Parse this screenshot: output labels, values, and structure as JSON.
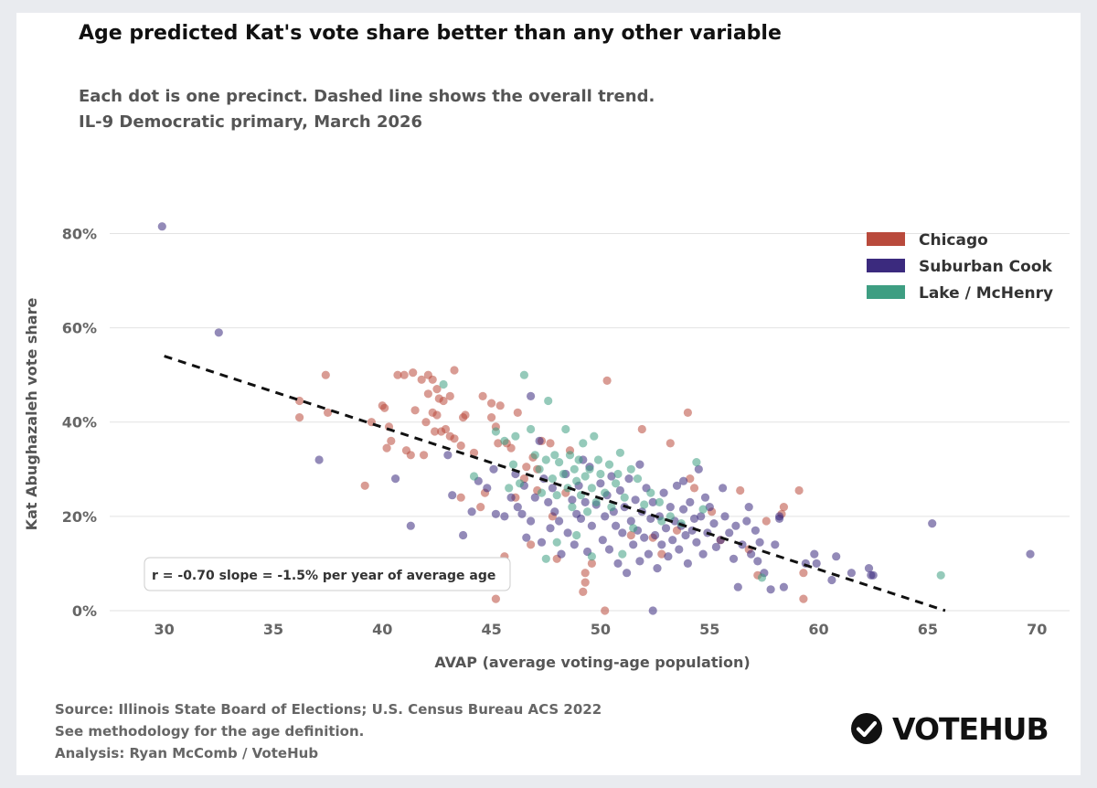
{
  "title": "Age predicted Kat's vote share better than any other variable",
  "subtitle": {
    "line1": "Each dot is one precinct. Dashed line shows the overall trend.",
    "line2": "IL-9 Democratic primary, March 2026"
  },
  "footer": {
    "line1": "Source: Illinois State Board of Elections; U.S. Census Bureau ACS 2022",
    "line2": "See methodology for the age definition.",
    "line3": "Analysis: Ryan McComb / VoteHub"
  },
  "brand": {
    "name": "VOTEHUB",
    "icon": "checkmark-circle-icon"
  },
  "colors": {
    "Chicago": "#b94a3c",
    "Suburban Cook": "#3b2a7e",
    "Lake / McHenry": "#3e9e82",
    "trend": "#111111"
  },
  "chart_data": {
    "type": "scatter",
    "title": "Age predicted Kat's vote share better than any other variable",
    "xlabel": "AVAP (average voting-age population)",
    "ylabel": "Kat Abughazaleh vote share",
    "xlim": [
      27.5,
      71.5
    ],
    "ylim": [
      0,
      83
    ],
    "xticks": [
      30,
      35,
      40,
      45,
      50,
      55,
      60,
      65,
      70
    ],
    "xtick_labels": [
      "30",
      "35",
      "40",
      "45",
      "50",
      "55",
      "60",
      "65",
      "70"
    ],
    "yticks": [
      0,
      20,
      40,
      60,
      80
    ],
    "ytick_labels": [
      "0%",
      "20%",
      "40%",
      "60%",
      "80%"
    ],
    "grid": "horizontal",
    "legend_position": "top-right",
    "trendline": {
      "x0": 30,
      "y0": 54,
      "x1": 65.8,
      "y1": 0,
      "style": "dashed"
    },
    "annotation": "r = -0.70   slope = -1.5% per year of average age",
    "series": [
      {
        "name": "Chicago",
        "points": [
          [
            36.2,
            44.5
          ],
          [
            36.2,
            41
          ],
          [
            37.4,
            50
          ],
          [
            37.5,
            42
          ],
          [
            39.2,
            26.5
          ],
          [
            39.5,
            40
          ],
          [
            40,
            43.5
          ],
          [
            40.1,
            43
          ],
          [
            40.2,
            34.5
          ],
          [
            40.3,
            39
          ],
          [
            40.4,
            36
          ],
          [
            40.7,
            50
          ],
          [
            41,
            50
          ],
          [
            41.1,
            34
          ],
          [
            41.3,
            33
          ],
          [
            41.4,
            50.5
          ],
          [
            41.5,
            42.5
          ],
          [
            41.8,
            49
          ],
          [
            41.9,
            33
          ],
          [
            42,
            40
          ],
          [
            42.1,
            46
          ],
          [
            42.1,
            50
          ],
          [
            42.3,
            42
          ],
          [
            42.3,
            49
          ],
          [
            42.4,
            38
          ],
          [
            42.5,
            41.5
          ],
          [
            42.5,
            47
          ],
          [
            42.6,
            45
          ],
          [
            42.7,
            38
          ],
          [
            42.8,
            44.5
          ],
          [
            42.9,
            38.5
          ],
          [
            43.1,
            45.5
          ],
          [
            43.1,
            37
          ],
          [
            43.3,
            36.5
          ],
          [
            43.3,
            51
          ],
          [
            43.6,
            35
          ],
          [
            43.6,
            24
          ],
          [
            43.7,
            41
          ],
          [
            43.8,
            41.5
          ],
          [
            44.2,
            33.5
          ],
          [
            44.6,
            45.5
          ],
          [
            44.7,
            25
          ],
          [
            45,
            44
          ],
          [
            45,
            41
          ],
          [
            45.2,
            39
          ],
          [
            45.3,
            35.5
          ],
          [
            45.4,
            43.5
          ],
          [
            45.7,
            35.5
          ],
          [
            45.9,
            34.5
          ],
          [
            46.1,
            24
          ],
          [
            46.2,
            42
          ],
          [
            46.5,
            28
          ],
          [
            46.6,
            30.5
          ],
          [
            46.9,
            32.5
          ],
          [
            47.1,
            30
          ],
          [
            47.1,
            25.5
          ],
          [
            47.3,
            36
          ],
          [
            47.7,
            35.5
          ],
          [
            45.2,
            2.5
          ],
          [
            45.6,
            11.5
          ],
          [
            47.8,
            20
          ],
          [
            48,
            11
          ],
          [
            48.6,
            34
          ],
          [
            49.2,
            4
          ],
          [
            49.3,
            8
          ],
          [
            49.3,
            6
          ],
          [
            50.3,
            48.8
          ],
          [
            50.2,
            0
          ],
          [
            51.4,
            16
          ],
          [
            51.9,
            38.5
          ],
          [
            52.4,
            15.5
          ],
          [
            53.2,
            35.5
          ],
          [
            53.5,
            17
          ],
          [
            54,
            42
          ],
          [
            54.1,
            28
          ],
          [
            54.3,
            26
          ],
          [
            55.5,
            15
          ],
          [
            56.4,
            25.5
          ],
          [
            57.2,
            7.5
          ],
          [
            57.6,
            19
          ],
          [
            58.3,
            20.5
          ],
          [
            58.4,
            22
          ],
          [
            59.1,
            25.5
          ],
          [
            59.3,
            8
          ],
          [
            59.3,
            2.5
          ],
          [
            44.5,
            22
          ],
          [
            46.8,
            14
          ],
          [
            48.4,
            25
          ],
          [
            49.6,
            10
          ],
          [
            52.8,
            12
          ],
          [
            55.1,
            21
          ],
          [
            56.8,
            13
          ]
        ]
      },
      {
        "name": "Suburban Cook",
        "points": [
          [
            29.9,
            81.5
          ],
          [
            32.5,
            59
          ],
          [
            37.1,
            32
          ],
          [
            40.6,
            28
          ],
          [
            41.3,
            18
          ],
          [
            43,
            33
          ],
          [
            43.2,
            24.5
          ],
          [
            43.7,
            16
          ],
          [
            44.1,
            21
          ],
          [
            44.4,
            27.5
          ],
          [
            44.8,
            26
          ],
          [
            45.1,
            30
          ],
          [
            45.2,
            20.5
          ],
          [
            45.6,
            20
          ],
          [
            45.9,
            24
          ],
          [
            46.1,
            29
          ],
          [
            46.2,
            22
          ],
          [
            46.4,
            20.5
          ],
          [
            46.5,
            26.5
          ],
          [
            46.6,
            15.5
          ],
          [
            46.8,
            45.5
          ],
          [
            46.8,
            19
          ],
          [
            47,
            24
          ],
          [
            47.3,
            14.5
          ],
          [
            47.4,
            28
          ],
          [
            47.6,
            23
          ],
          [
            47.7,
            17.5
          ],
          [
            47.8,
            26
          ],
          [
            47.9,
            21
          ],
          [
            48.1,
            19
          ],
          [
            48.2,
            12
          ],
          [
            48.4,
            29
          ],
          [
            48.5,
            16.5
          ],
          [
            48.7,
            23.5
          ],
          [
            48.8,
            14
          ],
          [
            49,
            26.5
          ],
          [
            49.1,
            19.5
          ],
          [
            49.3,
            23
          ],
          [
            49.4,
            12.5
          ],
          [
            49.5,
            30.5
          ],
          [
            49.6,
            18
          ],
          [
            49.8,
            22.5
          ],
          [
            50,
            27
          ],
          [
            50.1,
            15
          ],
          [
            50.2,
            20
          ],
          [
            50.3,
            24.5
          ],
          [
            50.4,
            13
          ],
          [
            50.6,
            21
          ],
          [
            50.7,
            18
          ],
          [
            50.8,
            10
          ],
          [
            50.9,
            25.5
          ],
          [
            51,
            16.5
          ],
          [
            51.1,
            22
          ],
          [
            51.2,
            8
          ],
          [
            51.3,
            28
          ],
          [
            51.4,
            19
          ],
          [
            51.5,
            14
          ],
          [
            51.6,
            23.5
          ],
          [
            51.7,
            17
          ],
          [
            51.8,
            10.5
          ],
          [
            51.9,
            21
          ],
          [
            52,
            15.5
          ],
          [
            52.1,
            26
          ],
          [
            52.2,
            12
          ],
          [
            52.3,
            19.5
          ],
          [
            52.4,
            23
          ],
          [
            52.5,
            16
          ],
          [
            52.6,
            9
          ],
          [
            52.7,
            20
          ],
          [
            52.8,
            14
          ],
          [
            52.9,
            25
          ],
          [
            53,
            17.5
          ],
          [
            53.1,
            11.5
          ],
          [
            53.2,
            22
          ],
          [
            53.3,
            15
          ],
          [
            53.4,
            19
          ],
          [
            53.5,
            26.5
          ],
          [
            53.6,
            13
          ],
          [
            53.7,
            18
          ],
          [
            53.8,
            21.5
          ],
          [
            53.9,
            16
          ],
          [
            54,
            10
          ],
          [
            54.1,
            23
          ],
          [
            54.2,
            17
          ],
          [
            54.3,
            19.5
          ],
          [
            54.4,
            14.5
          ],
          [
            54.5,
            30
          ],
          [
            54.6,
            20
          ],
          [
            54.7,
            12
          ],
          [
            54.8,
            24
          ],
          [
            54.9,
            16.5
          ],
          [
            55,
            22
          ],
          [
            55.2,
            18.5
          ],
          [
            55.3,
            13.5
          ],
          [
            55.5,
            15
          ],
          [
            55.7,
            20
          ],
          [
            55.9,
            16.5
          ],
          [
            56.1,
            11
          ],
          [
            56.2,
            18
          ],
          [
            56.3,
            5
          ],
          [
            56.5,
            14
          ],
          [
            56.7,
            19
          ],
          [
            56.9,
            12
          ],
          [
            57.1,
            17
          ],
          [
            57.3,
            14.5
          ],
          [
            57.5,
            8
          ],
          [
            57.8,
            4.5
          ],
          [
            58,
            14
          ],
          [
            58.2,
            20
          ],
          [
            58.4,
            5
          ],
          [
            59.4,
            10
          ],
          [
            59.8,
            12
          ],
          [
            59.9,
            10
          ],
          [
            60.6,
            6.5
          ],
          [
            60.8,
            11.5
          ],
          [
            62.3,
            9
          ],
          [
            62.4,
            7.5
          ],
          [
            62.5,
            7.5
          ],
          [
            65.2,
            18.5
          ],
          [
            69.7,
            12
          ],
          [
            52.4,
            0
          ],
          [
            50.5,
            28.5
          ],
          [
            49.2,
            32
          ],
          [
            48.9,
            20.5
          ],
          [
            47.2,
            36
          ],
          [
            51.8,
            31
          ],
          [
            53.8,
            27.5
          ],
          [
            55.6,
            26
          ],
          [
            56.8,
            22
          ],
          [
            58.2,
            19.5
          ],
          [
            61.5,
            8
          ],
          [
            57.2,
            10.5
          ]
        ]
      },
      {
        "name": "Lake / McHenry",
        "points": [
          [
            42.8,
            48
          ],
          [
            44.2,
            28.5
          ],
          [
            45.2,
            38
          ],
          [
            45.6,
            36
          ],
          [
            46,
            31
          ],
          [
            46.3,
            27
          ],
          [
            46.5,
            50
          ],
          [
            46.8,
            38.5
          ],
          [
            47,
            33
          ],
          [
            47.2,
            30
          ],
          [
            47.3,
            25
          ],
          [
            47.5,
            32
          ],
          [
            47.6,
            44.5
          ],
          [
            47.8,
            28
          ],
          [
            47.9,
            33
          ],
          [
            48,
            24.5
          ],
          [
            48.1,
            31.5
          ],
          [
            48.3,
            29
          ],
          [
            48.4,
            38.5
          ],
          [
            48.5,
            26
          ],
          [
            48.6,
            33
          ],
          [
            48.7,
            22
          ],
          [
            48.8,
            30
          ],
          [
            48.9,
            27.5
          ],
          [
            49,
            32
          ],
          [
            49.1,
            24.5
          ],
          [
            49.2,
            35.5
          ],
          [
            49.3,
            28.5
          ],
          [
            49.4,
            21
          ],
          [
            49.5,
            30
          ],
          [
            49.6,
            26
          ],
          [
            49.7,
            37
          ],
          [
            49.8,
            23
          ],
          [
            49.9,
            32
          ],
          [
            50,
            29
          ],
          [
            50.2,
            25
          ],
          [
            50.4,
            31
          ],
          [
            50.5,
            22
          ],
          [
            50.7,
            27
          ],
          [
            50.9,
            33.5
          ],
          [
            51.1,
            24
          ],
          [
            51.4,
            30
          ],
          [
            51.7,
            28
          ],
          [
            52,
            22.5
          ],
          [
            52.3,
            25
          ],
          [
            52.7,
            23
          ],
          [
            53.2,
            20
          ],
          [
            53.7,
            18.5
          ],
          [
            54.4,
            31.5
          ],
          [
            54.7,
            21.5
          ],
          [
            47.5,
            11
          ],
          [
            48,
            14.5
          ],
          [
            48.9,
            16
          ],
          [
            51,
            12
          ],
          [
            51.5,
            17.5
          ],
          [
            52.8,
            19
          ],
          [
            57.4,
            7
          ],
          [
            65.6,
            7.5
          ],
          [
            46.1,
            37
          ],
          [
            45.8,
            26
          ],
          [
            49.6,
            11.5
          ],
          [
            50.8,
            29
          ]
        ]
      }
    ]
  }
}
